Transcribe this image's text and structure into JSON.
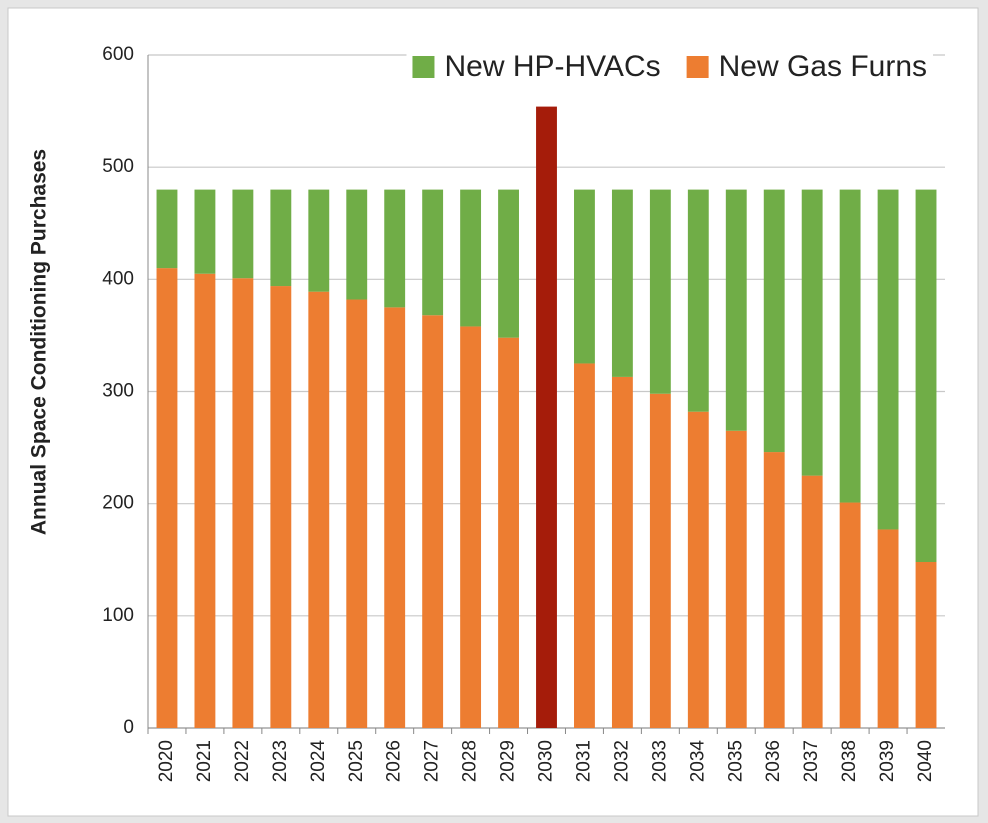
{
  "chart_data": {
    "type": "bar",
    "stacked": true,
    "y_label": "Annual Space Conditioning Purchases",
    "categories": [
      "2020",
      "2021",
      "2022",
      "2023",
      "2024",
      "2025",
      "2026",
      "2027",
      "2028",
      "2029",
      "2030",
      "2031",
      "2032",
      "2033",
      "2034",
      "2035",
      "2036",
      "2037",
      "2038",
      "2039",
      "2040"
    ],
    "series": [
      {
        "name": "New Gas Furns",
        "color": "#ed7d31",
        "values": [
          410,
          405,
          401,
          394,
          389,
          382,
          375,
          368,
          358,
          348,
          null,
          325,
          313,
          298,
          282,
          265,
          246,
          225,
          201,
          177,
          148
        ]
      },
      {
        "name": "New HP-HVACs",
        "color": "#70ad47",
        "values": [
          70,
          75,
          79,
          86,
          91,
          98,
          105,
          112,
          122,
          132,
          null,
          155,
          167,
          182,
          198,
          215,
          234,
          255,
          279,
          303,
          332
        ]
      },
      {
        "color": "#a51c0a",
        "values": [
          null,
          null,
          null,
          null,
          null,
          null,
          null,
          null,
          null,
          null,
          554,
          null,
          null,
          null,
          null,
          null,
          null,
          null,
          null,
          null,
          null
        ]
      }
    ],
    "ylim": [
      0,
      600
    ],
    "yticks": [
      0,
      100,
      200,
      300,
      400,
      500,
      600
    ],
    "grid": true,
    "legend": "top-right"
  }
}
